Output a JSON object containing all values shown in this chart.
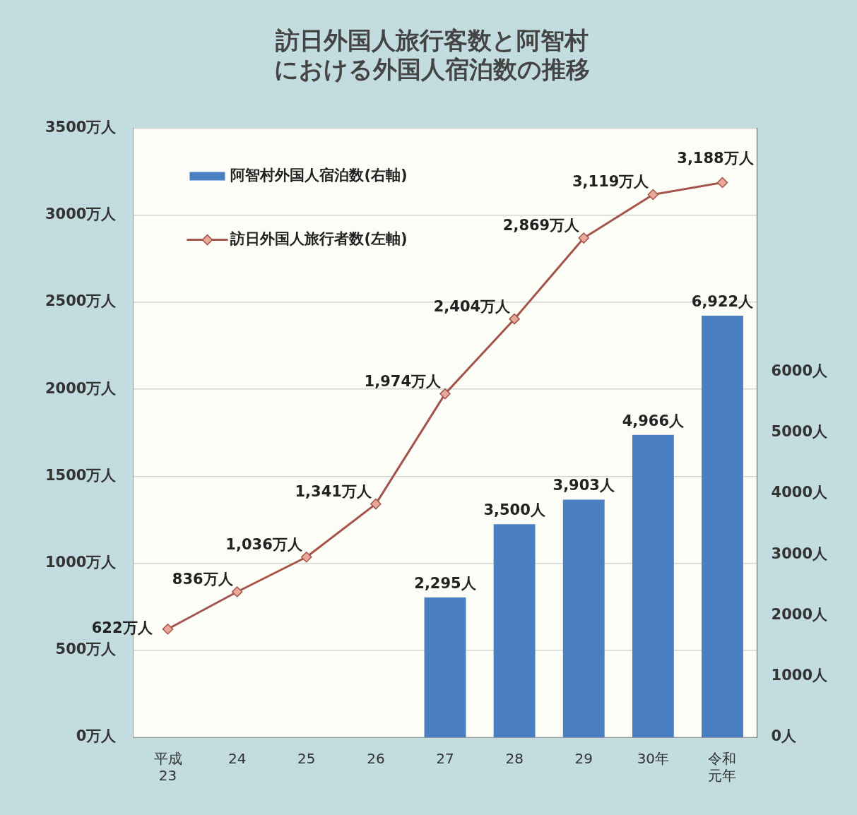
{
  "chart_data": {
    "type": "bar",
    "title": "訪日外国人旅行客数と阿智村における外国人宿泊数の推移",
    "categories": [
      "平成23",
      "24",
      "25",
      "26",
      "27",
      "28",
      "29",
      "30年",
      "令和元年"
    ],
    "series": [
      {
        "name": "阿智村外国人宿泊数(右軸)",
        "axis": "y2",
        "color": "#4a7fc1",
        "values": [
          null,
          null,
          null,
          null,
          2295,
          3500,
          3903,
          4966,
          6922
        ],
        "value_labels": [
          null,
          null,
          null,
          null,
          "2,295人",
          "3,500人",
          "3,903人",
          "4,966人",
          "6,922人"
        ]
      },
      {
        "name": "訪日外国人旅行者数(左軸)",
        "type": "line",
        "axis": "y",
        "color": "#a3544b",
        "values": [
          622,
          836,
          1036,
          1341,
          1974,
          2404,
          2869,
          3119,
          3188
        ],
        "value_labels": [
          "622万人",
          "836万人",
          "1,036万人",
          "1,341万人",
          "1,974万人",
          "2,404万人",
          "2,869万人",
          "3,119万人",
          "3,188万人"
        ]
      }
    ],
    "ylim": [
      0,
      3500
    ],
    "yticks": [
      {
        "value": 0,
        "label": "0万人"
      },
      {
        "value": 500,
        "label": "500万人"
      },
      {
        "value": 1000,
        "label": "1000万人"
      },
      {
        "value": 1500,
        "label": "1500万人"
      },
      {
        "value": 2000,
        "label": "2000万人"
      },
      {
        "value": 2500,
        "label": "2500万人"
      },
      {
        "value": 3000,
        "label": "3000万人"
      },
      {
        "value": 3500,
        "label": "3500万人"
      }
    ],
    "y2lim": [
      0,
      10000
    ],
    "y2ticks": [
      {
        "value": 0,
        "label": "0人"
      },
      {
        "value": 1000,
        "label": "1000人"
      },
      {
        "value": 2000,
        "label": "2000人"
      },
      {
        "value": 3000,
        "label": "3000人"
      },
      {
        "value": 4000,
        "label": "4000人"
      },
      {
        "value": 5000,
        "label": "5000人"
      },
      {
        "value": 6000,
        "label": "6000人"
      }
    ],
    "grid": "y",
    "legend": "top left",
    "marker": "diamond",
    "line_style": "solid"
  }
}
